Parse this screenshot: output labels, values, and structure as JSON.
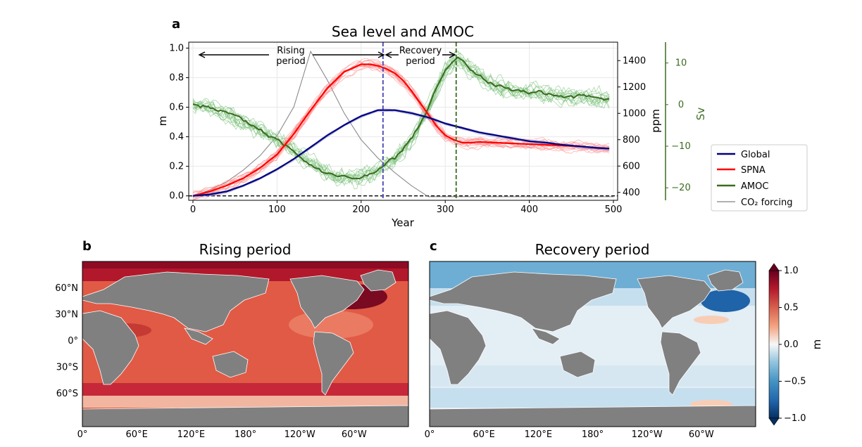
{
  "colors": {
    "global": "#000080",
    "spna": "#ff0000",
    "amoc": "#3a6b1e",
    "amoc_member": "#7fc37f",
    "co2": "#808080",
    "vline_blue": "#4646b4",
    "vline_green": "#3a6b1e",
    "land": "#808080"
  },
  "chart_data": [
    {
      "type": "line",
      "panel": "a",
      "title": "Sea level and AMOC",
      "xlabel": "Year",
      "ylabel": "m",
      "ylabel_right1": "ppm",
      "ylabel_right2": "Sv",
      "xlim": [
        -5,
        505
      ],
      "ylim": [
        -0.03,
        1.04
      ],
      "ylim_ppm": [
        340,
        1540
      ],
      "ylim_sv": [
        -23,
        15
      ],
      "x_ticks": [
        0,
        100,
        200,
        300,
        400,
        500
      ],
      "y_ticks": [
        0.0,
        0.2,
        0.4,
        0.6,
        0.8,
        1.0
      ],
      "ppm_ticks": [
        400,
        600,
        800,
        1000,
        1200,
        1400
      ],
      "sv_ticks": [
        -20,
        -10,
        0,
        10
      ],
      "grid": true,
      "legend_position": "right",
      "vlines": [
        226,
        313
      ],
      "annotations": {
        "rising": [
          "Rising",
          "period"
        ],
        "recovery": [
          "Recovery",
          "period"
        ]
      },
      "series": [
        {
          "name": "Global",
          "axis": "m",
          "x": [
            0,
            20,
            40,
            60,
            80,
            100,
            120,
            140,
            160,
            180,
            200,
            220,
            240,
            260,
            280,
            300,
            320,
            340,
            360,
            380,
            400,
            420,
            440,
            460,
            480,
            495
          ],
          "values": [
            0.0,
            0.01,
            0.03,
            0.07,
            0.12,
            0.18,
            0.25,
            0.33,
            0.41,
            0.48,
            0.54,
            0.58,
            0.58,
            0.56,
            0.53,
            0.49,
            0.46,
            0.43,
            0.41,
            0.39,
            0.37,
            0.36,
            0.345,
            0.335,
            0.325,
            0.32
          ]
        },
        {
          "name": "SPNA",
          "axis": "m",
          "x": [
            0,
            20,
            40,
            60,
            80,
            100,
            120,
            140,
            160,
            180,
            200,
            210,
            220,
            230,
            240,
            250,
            260,
            270,
            280,
            290,
            300,
            310,
            320,
            330,
            340,
            360,
            380,
            400,
            420,
            440,
            460,
            480,
            495
          ],
          "values": [
            0.0,
            0.03,
            0.07,
            0.12,
            0.19,
            0.28,
            0.42,
            0.58,
            0.73,
            0.84,
            0.89,
            0.89,
            0.88,
            0.86,
            0.83,
            0.78,
            0.71,
            0.63,
            0.55,
            0.47,
            0.41,
            0.38,
            0.36,
            0.36,
            0.365,
            0.36,
            0.355,
            0.35,
            0.345,
            0.34,
            0.335,
            0.325,
            0.32
          ]
        },
        {
          "name": "AMOC",
          "axis": "Sv",
          "x": [
            0,
            20,
            40,
            60,
            80,
            100,
            120,
            140,
            160,
            180,
            200,
            210,
            220,
            230,
            240,
            250,
            260,
            270,
            280,
            290,
            300,
            310,
            315,
            320,
            330,
            340,
            350,
            360,
            380,
            400,
            420,
            440,
            460,
            480,
            495
          ],
          "values": [
            0.0,
            -0.5,
            -2.0,
            -4.0,
            -6.0,
            -8.5,
            -11.0,
            -14.0,
            -16.5,
            -17.5,
            -17.5,
            -17.0,
            -16.0,
            -14.5,
            -13.0,
            -11.0,
            -8.5,
            -5.0,
            -1.0,
            4.0,
            8.0,
            10.5,
            11.0,
            10.5,
            8.5,
            7.0,
            5.5,
            4.5,
            3.5,
            3.0,
            2.5,
            2.0,
            2.0,
            1.5,
            1.5
          ]
        },
        {
          "name": "CO₂ forcing",
          "axis": "ppm",
          "x": [
            0,
            20,
            40,
            60,
            80,
            100,
            120,
            140,
            160,
            180,
            200,
            220,
            240,
            260,
            280,
            500
          ],
          "values": [
            367,
            420,
            480,
            570,
            680,
            830,
            1050,
            1470,
            1250,
            1000,
            800,
            660,
            550,
            450,
            367,
            367
          ]
        }
      ],
      "legend": [
        "Global",
        "SPNA",
        "AMOC",
        "CO₂ forcing"
      ]
    },
    {
      "type": "heatmap",
      "panel": "b",
      "title": "Rising period",
      "x_ticks": [
        "0°",
        "60°E",
        "120°E",
        "180°",
        "120°W",
        "60°W"
      ],
      "y_ticks": [
        "60°N",
        "30°N",
        "0°",
        "30°S",
        "60°S"
      ],
      "colorbar_label": "m",
      "value_range": [
        -1.0,
        1.0
      ],
      "colorbar_ticks": [
        "1.0",
        "0.5",
        "0.0",
        "−0.5",
        "−1.0"
      ]
    },
    {
      "type": "heatmap",
      "panel": "c",
      "title": "Recovery period",
      "x_ticks": [
        "0°",
        "60°E",
        "120°E",
        "180°",
        "120°W",
        "60°W"
      ],
      "colorbar_label": "m",
      "value_range": [
        -1.0,
        1.0
      ],
      "colorbar_ticks": [
        "1.0",
        "0.5",
        "0.0",
        "−0.5",
        "−1.0"
      ]
    }
  ]
}
